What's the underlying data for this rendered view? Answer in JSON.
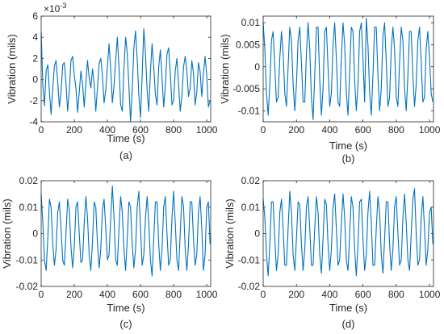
{
  "chart_data": [
    {
      "panel_label": "(a)",
      "type": "line",
      "xlabel": "Time (s)",
      "ylabel": "Vibration (mils)",
      "y_exponent_label": "×10",
      "y_exponent_power": "-3",
      "xlim": [
        0,
        1024
      ],
      "ylim": [
        -0.004,
        0.006
      ],
      "xticks": [
        0,
        200,
        400,
        600,
        800,
        1000
      ],
      "xtick_labels": [
        "0",
        "200",
        "400",
        "600",
        "800",
        "1000"
      ],
      "yticks": [
        -0.004,
        -0.002,
        0,
        0.002,
        0.004,
        0.006
      ],
      "ytick_labels": [
        "-4",
        "-2",
        "0",
        "2",
        "4",
        "6"
      ],
      "series": [
        {
          "color": "#0072BD",
          "x": [
            0,
            10,
            20,
            30,
            40,
            50,
            60,
            70,
            80,
            90,
            100,
            110,
            120,
            130,
            140,
            150,
            160,
            170,
            180,
            190,
            200,
            210,
            220,
            230,
            240,
            250,
            260,
            270,
            280,
            290,
            300,
            310,
            320,
            330,
            340,
            350,
            360,
            370,
            380,
            390,
            400,
            410,
            420,
            430,
            440,
            450,
            460,
            470,
            480,
            490,
            500,
            510,
            520,
            530,
            540,
            550,
            560,
            570,
            580,
            590,
            600,
            610,
            620,
            630,
            640,
            650,
            660,
            670,
            680,
            690,
            700,
            710,
            720,
            730,
            740,
            750,
            760,
            770,
            780,
            790,
            800,
            810,
            820,
            830,
            840,
            850,
            860,
            870,
            880,
            890,
            900,
            910,
            920,
            930,
            940,
            950,
            960,
            970,
            980,
            990,
            1000,
            1010,
            1020
          ],
          "y": [
            0.0045,
            -0.0005,
            -0.0025,
            0.0008,
            0.0014,
            -0.0012,
            -0.0033,
            -0.0008,
            0.0013,
            0.0018,
            -0.0002,
            -0.0026,
            -0.0012,
            0.0014,
            0.0016,
            -0.0004,
            -0.003,
            -0.001,
            0.0018,
            0.0022,
            0.0004,
            -0.0008,
            -0.0031,
            -0.0012,
            0.0008,
            -0.0004,
            -0.0026,
            -0.0004,
            0.0018,
            0.0002,
            -0.0008,
            0.001,
            -0.0004,
            -0.003,
            -0.0008,
            0.0015,
            0.002,
            0.0004,
            -0.0022,
            -0.001,
            0.0012,
            0.0034,
            0.001,
            -0.0022,
            -0.0006,
            0.0018,
            0.004,
            0.0012,
            -0.0024,
            -0.003,
            0.001,
            0.004,
            0.0025,
            -0.0006,
            -0.004,
            -0.001,
            0.003,
            0.0046,
            0.002,
            -0.0015,
            -0.0036,
            0.0004,
            0.0048,
            0.0024,
            -0.001,
            -0.003,
            0.0008,
            0.0034,
            0.0012,
            -0.0014,
            -0.0024,
            0.0012,
            0.0028,
            0.0002,
            -0.0026,
            -0.0006,
            0.0024,
            0.003,
            0.0006,
            -0.0024,
            -0.002,
            0.0008,
            0.002,
            -0.0004,
            -0.003,
            -0.0016,
            0.0012,
            0.0022,
            0.0008,
            -0.0016,
            -0.0008,
            0.0018,
            0.0006,
            -0.0024,
            -0.0012,
            0.0016,
            0.0008,
            -0.0016,
            0.0006,
            0.0022,
            0.0004,
            -0.0026,
            -0.002
          ]
        }
      ]
    },
    {
      "panel_label": "(b)",
      "type": "line",
      "xlabel": "Time (s)",
      "ylabel": "Vibration (mils)",
      "xlim": [
        0,
        1024
      ],
      "ylim": [
        -0.0125,
        0.0115
      ],
      "xticks": [
        0,
        200,
        400,
        600,
        800,
        1000
      ],
      "xtick_labels": [
        "0",
        "200",
        "400",
        "600",
        "800",
        "1000"
      ],
      "yticks": [
        -0.01,
        -0.005,
        0,
        0.005,
        0.01
      ],
      "ytick_labels": [
        "-0.01",
        "-0.005",
        "0",
        "0.005",
        "0.01"
      ],
      "series": [
        {
          "color": "#0072BD",
          "x": [
            0,
            10,
            20,
            30,
            40,
            50,
            60,
            70,
            80,
            90,
            100,
            110,
            120,
            130,
            140,
            150,
            160,
            170,
            180,
            190,
            200,
            210,
            220,
            230,
            240,
            250,
            260,
            270,
            280,
            290,
            300,
            310,
            320,
            330,
            340,
            350,
            360,
            370,
            380,
            390,
            400,
            410,
            420,
            430,
            440,
            450,
            460,
            470,
            480,
            490,
            500,
            510,
            520,
            530,
            540,
            550,
            560,
            570,
            580,
            590,
            600,
            610,
            620,
            630,
            640,
            650,
            660,
            670,
            680,
            690,
            700,
            710,
            720,
            730,
            740,
            750,
            760,
            770,
            780,
            790,
            800,
            810,
            820,
            830,
            840,
            850,
            860,
            870,
            880,
            890,
            900,
            910,
            920,
            930,
            940,
            950,
            960,
            970,
            980,
            990,
            1000,
            1010,
            1020
          ],
          "y": [
            0.01,
            0.004,
            -0.006,
            -0.011,
            -0.004,
            0.006,
            0.008,
            0.0,
            -0.008,
            -0.007,
            0.002,
            0.008,
            0.003,
            -0.006,
            -0.009,
            0.0,
            0.009,
            0.006,
            -0.004,
            -0.01,
            -0.004,
            0.006,
            0.009,
            0.001,
            -0.008,
            -0.008,
            0.003,
            0.01,
            0.004,
            -0.007,
            -0.012,
            -0.002,
            0.009,
            0.009,
            -0.003,
            -0.011,
            -0.005,
            0.008,
            0.009,
            0.0,
            -0.009,
            -0.006,
            0.005,
            0.01,
            0.002,
            -0.008,
            -0.009,
            0.002,
            0.01,
            0.005,
            -0.006,
            -0.011,
            -0.001,
            0.009,
            0.008,
            -0.003,
            -0.01,
            -0.004,
            0.008,
            0.01,
            0.002,
            -0.008,
            0.011,
            0.005,
            -0.006,
            -0.011,
            -0.002,
            0.009,
            0.009,
            -0.002,
            -0.01,
            -0.005,
            0.007,
            0.01,
            0.001,
            -0.009,
            -0.007,
            0.004,
            0.009,
            0.004,
            -0.007,
            -0.009,
            0.001,
            0.009,
            0.006,
            -0.005,
            -0.01,
            -0.002,
            0.008,
            0.008,
            -0.002,
            -0.009,
            -0.004,
            0.006,
            0.009,
            0.001,
            -0.008,
            -0.007,
            0.004,
            0.008,
            0.002,
            -0.006,
            -0.008
          ]
        }
      ]
    },
    {
      "panel_label": "(c)",
      "type": "line",
      "xlabel": "Time (s)",
      "ylabel": "Vibration (mils)",
      "xlim": [
        0,
        1024
      ],
      "ylim": [
        -0.02,
        0.02
      ],
      "xticks": [
        0,
        200,
        400,
        600,
        800,
        1000
      ],
      "xtick_labels": [
        "0",
        "200",
        "400",
        "600",
        "800",
        "1000"
      ],
      "yticks": [
        -0.02,
        -0.01,
        0,
        0.01,
        0.02
      ],
      "ytick_labels": [
        "-0.02",
        "-0.01",
        "0",
        "0.01",
        "0.02"
      ],
      "series": [
        {
          "color": "#0072BD",
          "x": [
            0,
            10,
            20,
            30,
            40,
            50,
            60,
            70,
            80,
            90,
            100,
            110,
            120,
            130,
            140,
            150,
            160,
            170,
            180,
            190,
            200,
            210,
            220,
            230,
            240,
            250,
            260,
            270,
            280,
            290,
            300,
            310,
            320,
            330,
            340,
            350,
            360,
            370,
            380,
            390,
            400,
            410,
            420,
            430,
            440,
            450,
            460,
            470,
            480,
            490,
            500,
            510,
            520,
            530,
            540,
            550,
            560,
            570,
            580,
            590,
            600,
            610,
            620,
            630,
            640,
            650,
            660,
            670,
            680,
            690,
            700,
            710,
            720,
            730,
            740,
            750,
            760,
            770,
            780,
            790,
            800,
            810,
            820,
            830,
            840,
            850,
            860,
            870,
            880,
            890,
            900,
            910,
            920,
            930,
            940,
            950,
            960,
            970,
            980,
            990,
            1000,
            1010,
            1020
          ],
          "y": [
            0.015,
            0.004,
            -0.01,
            -0.014,
            -0.002,
            0.013,
            0.01,
            -0.004,
            -0.012,
            -0.006,
            0.008,
            0.012,
            0.002,
            -0.01,
            -0.012,
            0.0,
            0.013,
            0.009,
            -0.005,
            -0.013,
            -0.005,
            0.01,
            0.012,
            0.0,
            -0.011,
            -0.01,
            0.004,
            0.014,
            0.006,
            -0.008,
            -0.014,
            -0.003,
            0.012,
            0.01,
            -0.004,
            -0.013,
            -0.006,
            0.009,
            0.013,
            0.002,
            -0.01,
            -0.008,
            0.006,
            0.018,
            0.006,
            -0.01,
            -0.012,
            0.002,
            0.014,
            0.008,
            -0.006,
            -0.014,
            -0.002,
            0.012,
            0.01,
            -0.004,
            -0.013,
            -0.006,
            0.01,
            0.016,
            0.002,
            -0.012,
            -0.008,
            0.006,
            0.014,
            0.004,
            -0.01,
            -0.016,
            -0.002,
            0.012,
            0.012,
            -0.004,
            -0.014,
            -0.006,
            0.01,
            0.014,
            0.0,
            -0.012,
            -0.01,
            0.006,
            0.016,
            0.004,
            -0.01,
            -0.014,
            0.0,
            0.014,
            0.01,
            -0.006,
            -0.014,
            -0.004,
            0.012,
            0.012,
            -0.002,
            -0.012,
            -0.008,
            0.008,
            0.014,
            0.002,
            -0.014,
            -0.008,
            0.01,
            0.012,
            -0.004
          ]
        }
      ]
    },
    {
      "panel_label": "(d)",
      "type": "line",
      "xlabel": "Time (s)",
      "ylabel": "Vibration (mils)",
      "xlim": [
        0,
        1024
      ],
      "ylim": [
        -0.02,
        0.02
      ],
      "xticks": [
        0,
        200,
        400,
        600,
        800,
        1000
      ],
      "xtick_labels": [
        "0",
        "200",
        "400",
        "600",
        "800",
        "1000"
      ],
      "yticks": [
        -0.02,
        -0.01,
        0,
        0.01,
        0.02
      ],
      "ytick_labels": [
        "-0.02",
        "-0.01",
        "0",
        "0.01",
        "0.02"
      ],
      "series": [
        {
          "color": "#0072BD",
          "x": [
            0,
            10,
            20,
            30,
            40,
            50,
            60,
            70,
            80,
            90,
            100,
            110,
            120,
            130,
            140,
            150,
            160,
            170,
            180,
            190,
            200,
            210,
            220,
            230,
            240,
            250,
            260,
            270,
            280,
            290,
            300,
            310,
            320,
            330,
            340,
            350,
            360,
            370,
            380,
            390,
            400,
            410,
            420,
            430,
            440,
            450,
            460,
            470,
            480,
            490,
            500,
            510,
            520,
            530,
            540,
            550,
            560,
            570,
            580,
            590,
            600,
            610,
            620,
            630,
            640,
            650,
            660,
            670,
            680,
            690,
            700,
            710,
            720,
            730,
            740,
            750,
            760,
            770,
            780,
            790,
            800,
            810,
            820,
            830,
            840,
            850,
            860,
            870,
            880,
            890,
            900,
            910,
            920,
            930,
            940,
            950,
            960,
            970,
            980,
            990,
            1000,
            1010,
            1020
          ],
          "y": [
            0.013,
            0.006,
            -0.008,
            -0.016,
            -0.004,
            0.012,
            0.012,
            -0.002,
            -0.014,
            -0.008,
            0.008,
            0.013,
            0.002,
            -0.012,
            -0.012,
            0.002,
            0.016,
            0.008,
            -0.008,
            -0.014,
            -0.002,
            0.012,
            0.011,
            -0.004,
            -0.014,
            -0.006,
            0.01,
            0.014,
            0.002,
            -0.012,
            -0.012,
            0.002,
            0.014,
            0.008,
            -0.008,
            -0.015,
            -0.002,
            0.013,
            0.011,
            -0.004,
            -0.014,
            -0.006,
            0.01,
            0.015,
            0.002,
            -0.012,
            -0.01,
            0.004,
            0.015,
            0.006,
            -0.01,
            -0.014,
            0.0,
            0.014,
            0.01,
            -0.006,
            -0.016,
            -0.004,
            0.012,
            0.013,
            -0.002,
            -0.014,
            -0.008,
            0.008,
            0.016,
            0.004,
            -0.012,
            -0.012,
            0.002,
            0.014,
            0.008,
            -0.008,
            -0.015,
            -0.002,
            0.012,
            0.012,
            -0.004,
            -0.014,
            -0.006,
            0.01,
            0.014,
            0.0,
            -0.012,
            -0.01,
            0.006,
            0.015,
            0.004,
            -0.01,
            -0.014,
            0.0,
            0.013,
            0.017,
            0.0,
            -0.012,
            -0.01,
            0.006,
            0.014,
            0.002,
            -0.012,
            -0.006,
            0.008,
            0.01,
            -0.004
          ]
        }
      ]
    }
  ]
}
